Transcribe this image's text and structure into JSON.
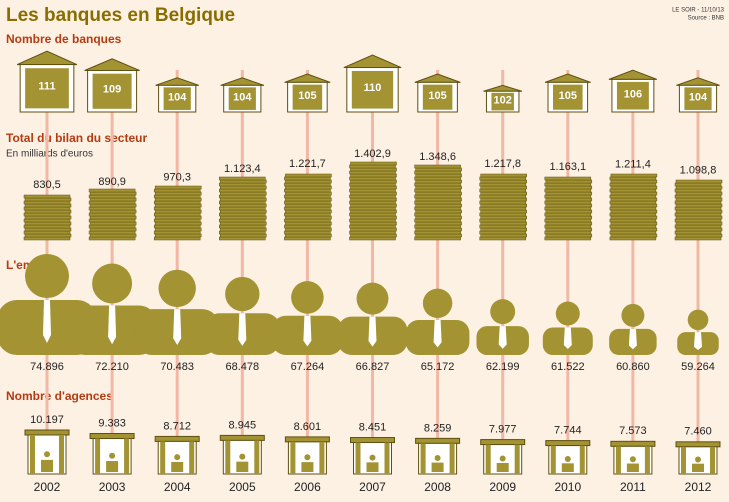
{
  "title": "Les banques en Belgique",
  "credit": "LE SOIR - 11/10/13",
  "source": "Source : BNB",
  "chart_data": [
    {
      "type": "pictogram",
      "icon": "bank",
      "title": "Nombre de banques",
      "color": "#a39333",
      "values": [
        111,
        109,
        104,
        104,
        105,
        110,
        105,
        102,
        105,
        106,
        104
      ]
    },
    {
      "type": "pictogram",
      "icon": "money",
      "title": "Total du bilan du secteur",
      "subtitle": "En milliards d'euros",
      "color": "#a39333",
      "values": [
        830.5,
        890.9,
        970.3,
        1123.4,
        1221.7,
        1402.9,
        1348.6,
        1217.8,
        1163.1,
        1211.4,
        1098.8
      ],
      "value_labels": [
        "830,5",
        "890,9",
        "970,3",
        "1.123,4",
        "1.221,7",
        "1.402,9",
        "1.348,6",
        "1.217,8",
        "1.163,1",
        "1.211,4",
        "1.098,8"
      ]
    },
    {
      "type": "pictogram",
      "icon": "person",
      "title": "L'emploi",
      "color": "#a39333",
      "values": [
        74896,
        72210,
        70483,
        68478,
        67264,
        66827,
        65172,
        62199,
        61522,
        60860,
        59264
      ],
      "value_labels": [
        "74.896",
        "72.210",
        "70.483",
        "68.478",
        "67.264",
        "66.827",
        "65.172",
        "62.199",
        "61.522",
        "60.860",
        "59.264"
      ]
    },
    {
      "type": "pictogram",
      "icon": "agency",
      "title": "Nombre d'agences",
      "color": "#a39333",
      "categories": [
        "2002",
        "2003",
        "2004",
        "2005",
        "2006",
        "2007",
        "2008",
        "2009",
        "2010",
        "2011",
        "2012"
      ],
      "values": [
        10197,
        9383,
        8712,
        8945,
        8601,
        8451,
        8259,
        7977,
        7744,
        7573,
        7460
      ],
      "value_labels": [
        "10.197",
        "9.383",
        "8.712",
        "8.945",
        "8.601",
        "8.451",
        "8.259",
        "7.977",
        "7.744",
        "7.573",
        "7.460"
      ]
    }
  ]
}
